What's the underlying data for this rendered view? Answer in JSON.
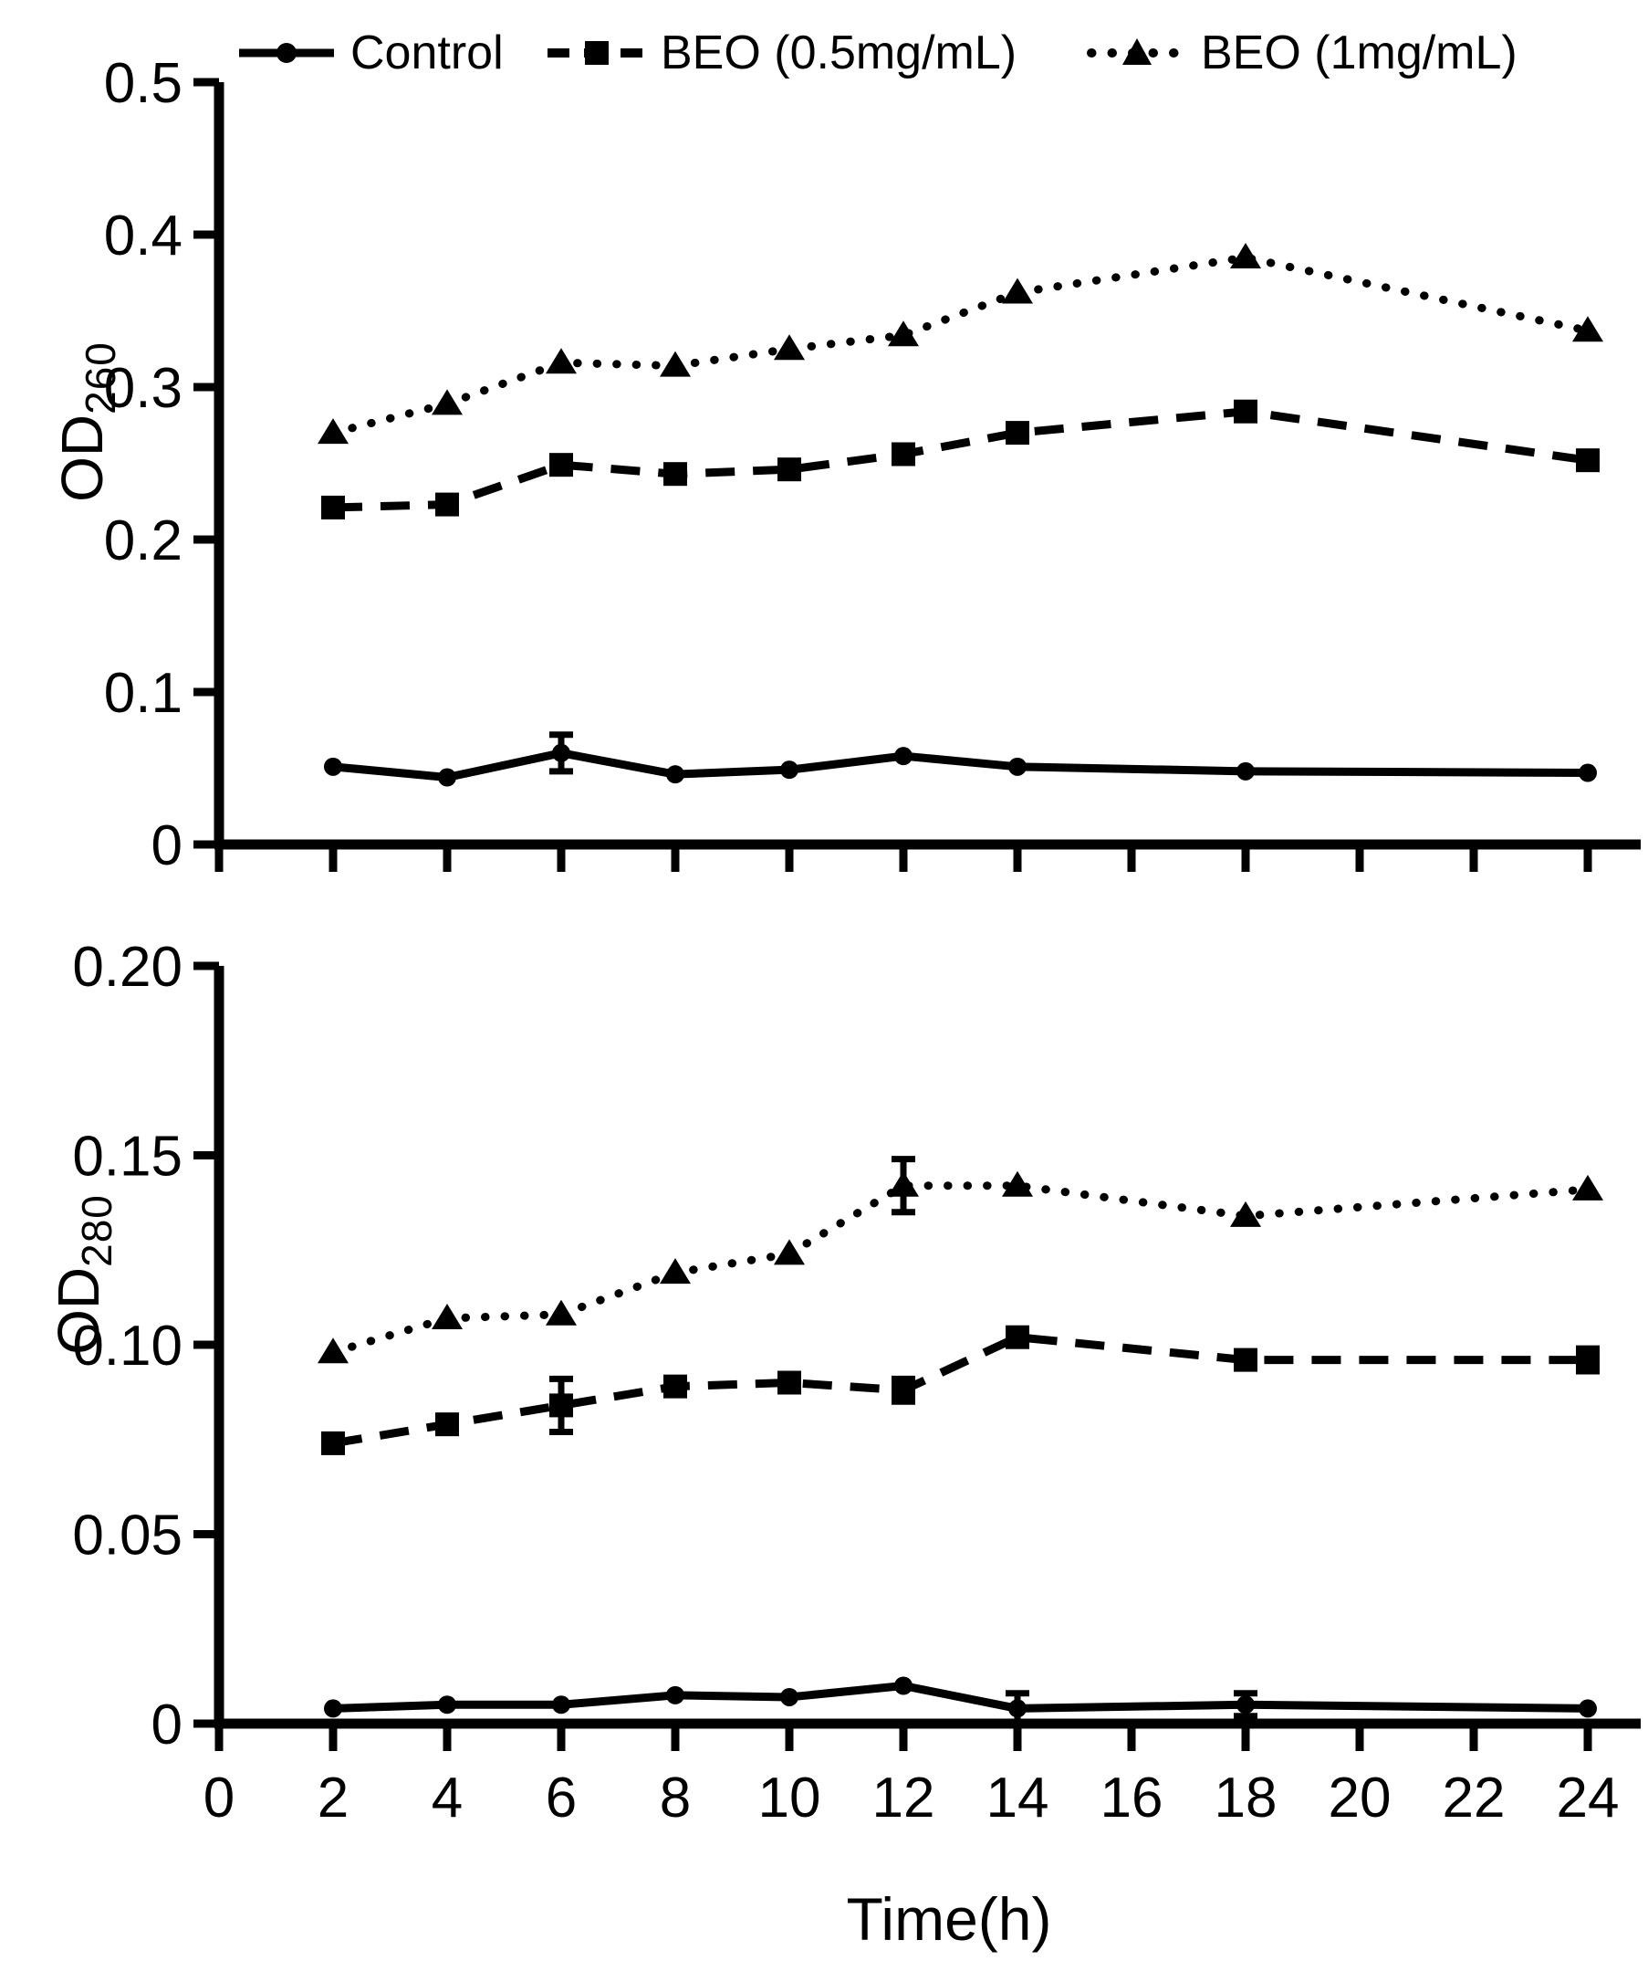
{
  "colors": {
    "ink": "#000000",
    "background": "#ffffff"
  },
  "legend": {
    "items": [
      {
        "label": "Control",
        "marker": "circle",
        "line": "solid"
      },
      {
        "label": "BEO (0.5mg/mL)",
        "marker": "square",
        "line": "dashed"
      },
      {
        "label": "BEO (1mg/mL)",
        "marker": "triangle",
        "line": "dotted"
      }
    ]
  },
  "x_axis": {
    "title": "Time(h)",
    "ticks": [
      0,
      2,
      4,
      6,
      8,
      10,
      12,
      14,
      16,
      18,
      20,
      22,
      24
    ]
  },
  "chart_data": [
    {
      "type": "line",
      "panel": "od260",
      "ylabel": {
        "base": "OD",
        "sub": "260"
      },
      "xlabel": "Time(h)",
      "x": [
        2,
        4,
        6,
        8,
        10,
        12,
        14,
        18,
        24
      ],
      "ylim": [
        0,
        0.5
      ],
      "grid": false,
      "legend_position": "top",
      "yticks": [
        {
          "v": 0,
          "label": "0"
        },
        {
          "v": 0.1,
          "label": "0.1"
        },
        {
          "v": 0.2,
          "label": "0.2"
        },
        {
          "v": 0.3,
          "label": "0.3"
        },
        {
          "v": 0.4,
          "label": "0.4"
        },
        {
          "v": 0.5,
          "label": "0.5"
        }
      ],
      "series": [
        {
          "name": "Control",
          "marker": "circle",
          "line": "solid",
          "values": [
            0.051,
            0.044,
            0.06,
            0.046,
            0.049,
            0.058,
            0.051,
            0.048,
            0.047
          ],
          "errors": [
            0,
            0,
            0.012,
            0,
            0,
            0,
            0,
            0,
            0
          ]
        },
        {
          "name": "BEO (0.5mg/mL)",
          "marker": "square",
          "line": "dashed",
          "values": [
            0.221,
            0.223,
            0.249,
            0.243,
            0.246,
            0.256,
            0.27,
            0.284,
            0.252
          ],
          "errors": [
            0,
            0,
            0,
            0,
            0,
            0,
            0,
            0,
            0
          ]
        },
        {
          "name": "BEO (1mg/mL)",
          "marker": "triangle",
          "line": "dotted",
          "values": [
            0.27,
            0.289,
            0.316,
            0.314,
            0.325,
            0.334,
            0.362,
            0.385,
            0.337
          ],
          "errors": [
            0,
            0,
            0,
            0,
            0,
            0,
            0,
            0,
            0
          ]
        }
      ]
    },
    {
      "type": "line",
      "panel": "od280",
      "ylabel": {
        "base": "OD",
        "sub": "280"
      },
      "xlabel": "Time(h)",
      "x": [
        2,
        4,
        6,
        8,
        10,
        12,
        14,
        18,
        24
      ],
      "ylim": [
        0,
        0.2
      ],
      "grid": false,
      "yticks": [
        {
          "v": 0,
          "label": "0"
        },
        {
          "v": 0.05,
          "label": "0.05"
        },
        {
          "v": 0.1,
          "label": "0.10"
        },
        {
          "v": 0.15,
          "label": "0.15"
        },
        {
          "v": 0.2,
          "label": "0.20"
        }
      ],
      "series": [
        {
          "name": "Control",
          "marker": "circle",
          "line": "solid",
          "values": [
            0.004,
            0.005,
            0.005,
            0.0075,
            0.007,
            0.01,
            0.004,
            0.005,
            0.004
          ],
          "errors": [
            0,
            0,
            0,
            0,
            0,
            0,
            0.004,
            0.003,
            0
          ]
        },
        {
          "name": "BEO (0.5mg/mL)",
          "marker": "square",
          "line": "dashed",
          "values": [
            0.074,
            0.079,
            0.084,
            0.089,
            0.09,
            0.088,
            0.102,
            0.096,
            0.096
          ],
          "errors": [
            0,
            0,
            0.007,
            0,
            0,
            0.003,
            0,
            0,
            0.003
          ]
        },
        {
          "name": "BEO (1mg/mL)",
          "marker": "triangle",
          "line": "dotted",
          "values": [
            0.098,
            0.107,
            0.108,
            0.119,
            0.124,
            0.142,
            0.142,
            0.134,
            0.141
          ],
          "errors": [
            0,
            0,
            0,
            0,
            0,
            0.007,
            0,
            0,
            0
          ]
        }
      ]
    }
  ]
}
